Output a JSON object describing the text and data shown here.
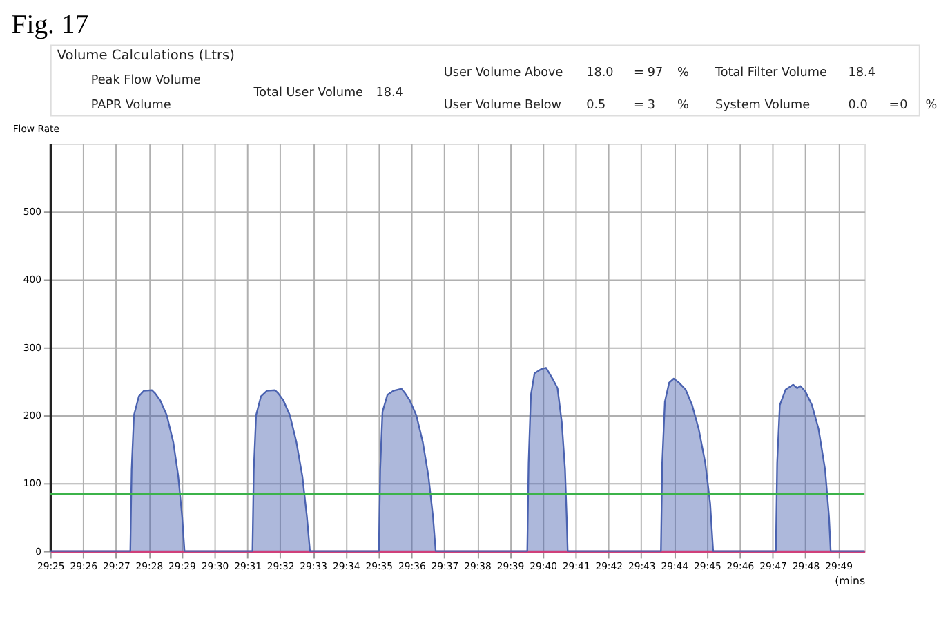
{
  "chart_data": {
    "type": "area",
    "title": "Fig. 17",
    "xlabel": "(mins",
    "ylabel": "Flow Rate",
    "annotations": [
      "Volume Calculations (Ltrs)",
      "Peak Flow Volume",
      "PAPR Volume",
      "Total User Volume",
      "18.4",
      "User Volume Above",
      "18.0",
      "=",
      "97",
      "%",
      "User Volume Below",
      "0.5",
      "=",
      "3",
      "%",
      "Total Filter Volume",
      "18.4",
      "System Volume",
      "0.0",
      "=",
      "0",
      "%"
    ],
    "series": [
      {
        "color": "#4a62b0",
        "x": [
          29.41667,
          29.45733,
          29.458,
          29.45917,
          29.46167,
          29.46417,
          29.46833,
          29.47,
          29.4725,
          29.47583,
          29.47917,
          29.48167,
          29.48367,
          29.48483,
          29.51933,
          29.52,
          29.52117,
          29.52367,
          29.52667,
          29.53083,
          29.5325,
          29.535,
          29.53833,
          29.54167,
          29.54467,
          29.547,
          29.5485,
          29.5835,
          29.58417,
          29.58533,
          29.58783,
          29.59083,
          29.595,
          29.59667,
          29.59917,
          29.6025,
          29.60583,
          29.60867,
          29.611,
          29.61233,
          29.65883,
          29.6595,
          29.66067,
          29.6625,
          29.66583,
          29.66833,
          29.67,
          29.672,
          29.67417,
          29.67633,
          29.678,
          29.67883,
          29.67933,
          29.72667,
          29.72733,
          29.72867,
          29.73083,
          29.73317,
          29.73583,
          29.73917,
          29.7425,
          29.74583,
          29.74917,
          29.75167,
          29.75317,
          29.785,
          29.78567,
          29.787,
          29.79,
          29.79383,
          29.79583,
          29.7975,
          29.8,
          29.80333,
          29.80667,
          29.81,
          29.812,
          29.81283,
          29.83
        ],
        "values": [
          0,
          0,
          120,
          200,
          228,
          236,
          237,
          232,
          222,
          200,
          160,
          110,
          50,
          0,
          0,
          120,
          200,
          228,
          236,
          237,
          232,
          222,
          200,
          160,
          110,
          50,
          0,
          0,
          120,
          205,
          230,
          236,
          239,
          233,
          222,
          200,
          160,
          110,
          50,
          0,
          0,
          130,
          230,
          262,
          268,
          270,
          262,
          252,
          240,
          190,
          120,
          50,
          0,
          0,
          130,
          220,
          248,
          254,
          248,
          238,
          215,
          180,
          130,
          70,
          0,
          0,
          130,
          215,
          238,
          245,
          240,
          243,
          235,
          215,
          180,
          120,
          50,
          0,
          0
        ]
      }
    ],
    "xlim": [
      29.41667,
      29.83
    ],
    "ylim": [
      0,
      600
    ],
    "xticks": [
      {
        "value": 29.41667,
        "label": "29:25"
      },
      {
        "value": 29.43333,
        "label": "29:26"
      },
      {
        "value": 29.45,
        "label": "29:27"
      },
      {
        "value": 29.46667,
        "label": "29:28"
      },
      {
        "value": 29.48333,
        "label": "29:29"
      },
      {
        "value": 29.5,
        "label": "29:30"
      },
      {
        "value": 29.51667,
        "label": "29:31"
      },
      {
        "value": 29.53333,
        "label": "29:32"
      },
      {
        "value": 29.55,
        "label": "29:33"
      },
      {
        "value": 29.56667,
        "label": "29:34"
      },
      {
        "value": 29.58333,
        "label": "29:35"
      },
      {
        "value": 29.6,
        "label": "29:36"
      },
      {
        "value": 29.61667,
        "label": "29:37"
      },
      {
        "value": 29.63333,
        "label": "29:38"
      },
      {
        "value": 29.65,
        "label": "29:39"
      },
      {
        "value": 29.66667,
        "label": "29:40"
      },
      {
        "value": 29.68333,
        "label": "29:41"
      },
      {
        "value": 29.7,
        "label": "29:42"
      },
      {
        "value": 29.71667,
        "label": "29:43"
      },
      {
        "value": 29.73333,
        "label": "29:44"
      },
      {
        "value": 29.75,
        "label": "29:45"
      },
      {
        "value": 29.76667,
        "label": "29:46"
      },
      {
        "value": 29.78333,
        "label": "29:47"
      },
      {
        "value": 29.8,
        "label": "29:48"
      },
      {
        "value": 29.81667,
        "label": "29:49"
      }
    ],
    "yticks": [
      0,
      100,
      200,
      300,
      400,
      500
    ],
    "ref_lines": [
      {
        "axis": "y",
        "value": 84,
        "color": "#3cb34a"
      }
    ],
    "grid": true
  }
}
